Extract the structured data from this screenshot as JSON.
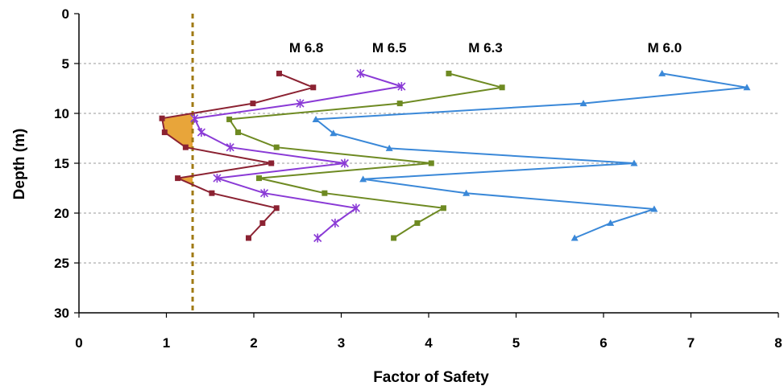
{
  "chart_data": {
    "type": "line",
    "xlabel": "Factor of Safety",
    "ylabel": "Depth (m)",
    "xlim": [
      0,
      8
    ],
    "ylim": [
      0,
      30
    ],
    "y_inverted": true,
    "x_ticks": [
      "0",
      "1",
      "2",
      "3",
      "4",
      "5",
      "6",
      "7",
      "8"
    ],
    "y_ticks": [
      "0",
      "5",
      "10",
      "15",
      "20",
      "25",
      "30"
    ],
    "grid": "horizontal dashed",
    "threshold_line": {
      "x": 1.3,
      "color": "#a07a14",
      "style": "dashed"
    },
    "shaded_fill_color": "#e8a53a",
    "series": [
      {
        "name": "M 6.8",
        "color": "#8b2232",
        "marker": "square",
        "label_at": [
          2.6,
          3.4
        ],
        "points": [
          [
            2.29,
            6.0
          ],
          [
            2.68,
            7.4
          ],
          [
            1.99,
            9.0
          ],
          [
            0.95,
            10.5
          ],
          [
            0.98,
            11.9
          ],
          [
            1.22,
            13.4
          ],
          [
            2.2,
            15.0
          ],
          [
            1.13,
            16.5
          ],
          [
            1.52,
            18.0
          ],
          [
            2.26,
            19.5
          ],
          [
            2.1,
            21.0
          ],
          [
            1.94,
            22.5
          ]
        ]
      },
      {
        "name": "M 6.5",
        "color": "#8a3ad6",
        "marker": "star",
        "label_at": [
          3.55,
          3.4
        ],
        "points": [
          [
            3.22,
            6.0
          ],
          [
            3.69,
            7.3
          ],
          [
            2.53,
            9.0
          ],
          [
            1.32,
            10.5
          ],
          [
            1.4,
            11.9
          ],
          [
            1.73,
            13.4
          ],
          [
            3.04,
            15.0
          ],
          [
            1.58,
            16.5
          ],
          [
            2.12,
            18.0
          ],
          [
            3.17,
            19.5
          ],
          [
            2.93,
            21.0
          ],
          [
            2.73,
            22.5
          ]
        ]
      },
      {
        "name": "M 6.3",
        "color": "#6e8a22",
        "marker": "square",
        "label_at": [
          4.65,
          3.4
        ],
        "points": [
          [
            4.23,
            6.0
          ],
          [
            4.84,
            7.4
          ],
          [
            3.67,
            9.0
          ],
          [
            1.72,
            10.6
          ],
          [
            1.82,
            11.9
          ],
          [
            2.26,
            13.4
          ],
          [
            4.03,
            15.0
          ],
          [
            2.06,
            16.5
          ],
          [
            2.81,
            18.0
          ],
          [
            4.17,
            19.5
          ],
          [
            3.87,
            21.0
          ],
          [
            3.6,
            22.5
          ]
        ]
      },
      {
        "name": "M 6.0",
        "color": "#3a88d8",
        "marker": "triangle",
        "label_at": [
          6.7,
          3.4
        ],
        "points": [
          [
            6.67,
            6.0
          ],
          [
            7.64,
            7.4
          ],
          [
            5.77,
            9.0
          ],
          [
            2.71,
            10.6
          ],
          [
            2.91,
            12.0
          ],
          [
            3.55,
            13.5
          ],
          [
            6.35,
            15.0
          ],
          [
            3.25,
            16.6
          ],
          [
            4.43,
            18.0
          ],
          [
            6.58,
            19.6
          ],
          [
            6.08,
            21.0
          ],
          [
            5.67,
            22.5
          ]
        ]
      }
    ]
  }
}
